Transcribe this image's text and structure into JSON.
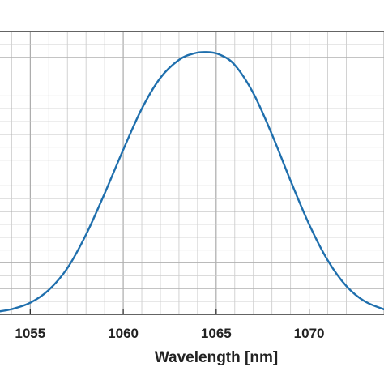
{
  "chart_data": {
    "type": "line",
    "title": "",
    "xlabel": "Wavelength [nm]",
    "ylabel": "",
    "xlim": [
      1053.2,
      1074.2
    ],
    "ylim": [
      0,
      1.1
    ],
    "grid": "major-and-minor",
    "x_ticks": [
      1055,
      1060,
      1065,
      1070
    ],
    "x_tick_labels": [
      "1055",
      "1060",
      "1065",
      "1070"
    ],
    "line_color": "#1f6fad",
    "series": [
      {
        "x": [
          1053.2,
          1054.0,
          1055.0,
          1056.0,
          1057.0,
          1058.0,
          1059.0,
          1060.0,
          1061.0,
          1062.0,
          1063.0,
          1063.8,
          1064.5,
          1065.2,
          1066.0,
          1067.0,
          1068.0,
          1069.0,
          1070.0,
          1071.0,
          1072.0,
          1073.0,
          1074.2
        ],
        "y": [
          0.01,
          0.02,
          0.045,
          0.095,
          0.18,
          0.31,
          0.47,
          0.64,
          0.8,
          0.92,
          0.99,
          1.015,
          1.02,
          1.01,
          0.97,
          0.86,
          0.7,
          0.52,
          0.35,
          0.21,
          0.11,
          0.05,
          0.015
        ]
      }
    ]
  }
}
